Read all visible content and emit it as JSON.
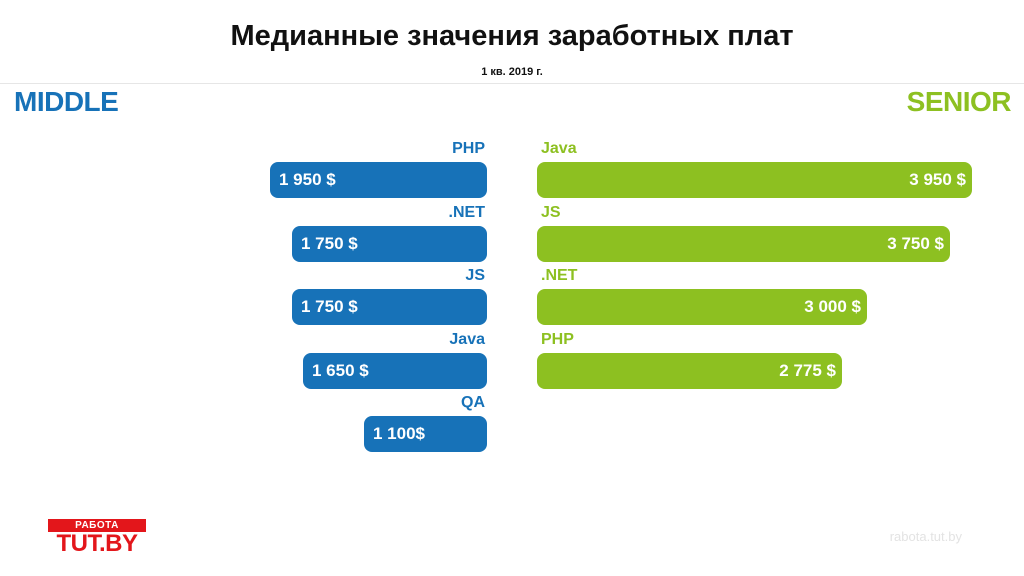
{
  "header": {
    "title": "Медианные значения заработных плат",
    "subtitle": "1 кв. 2019 г."
  },
  "colors": {
    "middle": "#1772b8",
    "senior": "#8dc021"
  },
  "chart_data": [
    {
      "type": "bar",
      "orientation": "horizontal",
      "title": "MIDDLE",
      "categories": [
        "PHP",
        ".NET",
        "JS",
        "Java",
        "QA"
      ],
      "values": [
        1950,
        1750,
        1750,
        1650,
        1100
      ],
      "labels": [
        "1 950 $",
        "1 750 $",
        "1 750 $",
        "1 650 $",
        "1 100$"
      ],
      "unit": "$",
      "direction": "right-to-left",
      "color": "#1772b8"
    },
    {
      "type": "bar",
      "orientation": "horizontal",
      "title": "SENIOR",
      "categories": [
        "Java",
        "JS",
        ".NET",
        "PHP"
      ],
      "values": [
        3950,
        3750,
        3000,
        2775
      ],
      "labels": [
        "3 950 $",
        "3 750 $",
        "3 000 $",
        "2 775 $"
      ],
      "unit": "$",
      "direction": "left-to-right",
      "color": "#8dc021"
    }
  ],
  "logo": {
    "top": "РАБОТА",
    "bottom": "TUT.BY",
    "color": "#e3161b"
  },
  "footer": {
    "site": "rabota.tut.by"
  }
}
